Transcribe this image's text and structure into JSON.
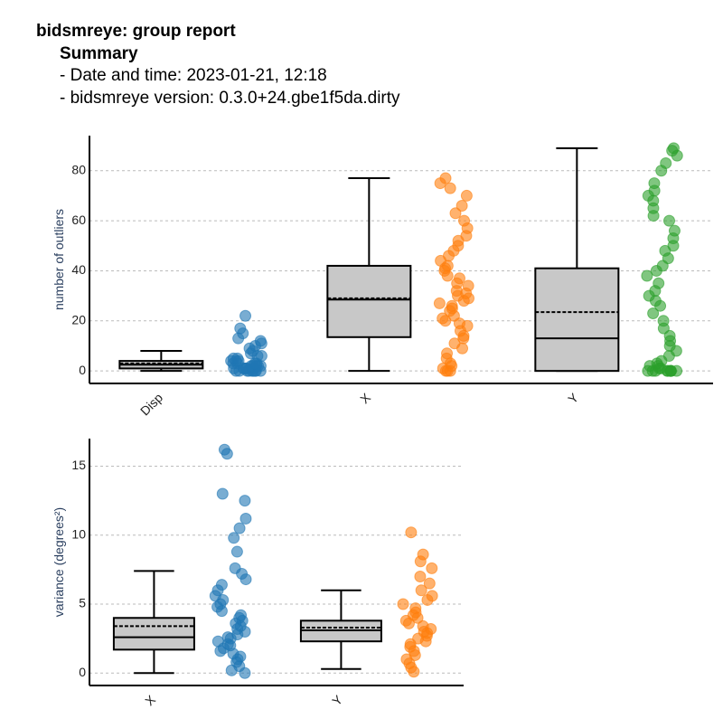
{
  "header": {
    "title": "bidsmreye: group report",
    "subtitle": "Summary",
    "lines": [
      "- Date and time: 2023-01-21, 12:18",
      "- bidsmreye version: 0.3.0+24.gbe1f5da.dirty"
    ]
  },
  "chart_data": [
    {
      "type": "box",
      "ylabel": "number of outliers",
      "categories": [
        "Disp",
        "X",
        "Y"
      ],
      "ylim": [
        -5,
        94
      ],
      "yticks": [
        0,
        20,
        40,
        60,
        80
      ],
      "grid": true,
      "box_color": "#c8c8c8",
      "boxes": [
        {
          "whislo": 0,
          "q1": 1,
          "med": 2.5,
          "q3": 4,
          "whishi": 8,
          "mean": 3
        },
        {
          "whislo": 0,
          "q1": 13.5,
          "med": 28.5,
          "q3": 42,
          "whishi": 77,
          "mean": 29
        },
        {
          "whislo": 0,
          "q1": 0,
          "med": 13,
          "q3": 41,
          "whishi": 89,
          "mean": 23.5
        }
      ],
      "points": [
        {
          "color": "#1f77b4",
          "values": [
            0,
            0,
            0,
            0,
            0,
            0,
            0,
            0,
            0,
            1,
            1,
            1,
            1,
            1,
            1,
            2,
            2,
            2,
            2,
            2,
            3,
            3,
            3,
            3,
            4,
            4,
            4,
            5,
            5,
            6,
            6,
            7,
            8,
            9,
            10,
            11,
            12,
            13,
            15,
            17,
            22
          ]
        },
        {
          "color": "#ff7f0e",
          "values": [
            0,
            0,
            0,
            1,
            2,
            3,
            5,
            7,
            9,
            11,
            13,
            14,
            16,
            18,
            19,
            20,
            21,
            22,
            24,
            25,
            26,
            27,
            28,
            29,
            30,
            31,
            32,
            34,
            35,
            37,
            38,
            40,
            41,
            42,
            44,
            46,
            48,
            50,
            52,
            54,
            57,
            60,
            63,
            66,
            70,
            73,
            75,
            77
          ]
        },
        {
          "color": "#2ca02c",
          "values": [
            0,
            0,
            0,
            0,
            0,
            0,
            0,
            0,
            0,
            0,
            1,
            1,
            2,
            2,
            3,
            4,
            6,
            8,
            10,
            12,
            14,
            17,
            20,
            23,
            26,
            28,
            30,
            32,
            35,
            38,
            40,
            42,
            45,
            48,
            50,
            53,
            56,
            60,
            62,
            65,
            68,
            70,
            72,
            75,
            80,
            83,
            86,
            88,
            89
          ]
        }
      ]
    },
    {
      "type": "box",
      "ylabel": "variance (degrees²)",
      "categories": [
        "X",
        "Y"
      ],
      "ylim": [
        -0.9,
        17
      ],
      "yticks": [
        0,
        5,
        10,
        15
      ],
      "grid": true,
      "box_color": "#c8c8c8",
      "boxes": [
        {
          "whislo": 0,
          "q1": 1.7,
          "med": 2.6,
          "q3": 4.0,
          "whishi": 7.4,
          "mean": 3.4
        },
        {
          "whislo": 0.3,
          "q1": 2.3,
          "med": 3.1,
          "q3": 3.8,
          "whishi": 6.0,
          "mean": 3.3
        }
      ],
      "points": [
        {
          "color": "#1f77b4",
          "values": [
            0,
            0.2,
            0.5,
            0.8,
            1,
            1.2,
            1.4,
            1.6,
            1.8,
            2,
            2.1,
            2.3,
            2.5,
            2.6,
            2.8,
            3,
            3.2,
            3.4,
            3.6,
            3.8,
            4,
            4.2,
            4.5,
            4.8,
            5,
            5.3,
            5.6,
            6,
            6.4,
            6.8,
            7.2,
            7.6,
            8.8,
            9.8,
            10.5,
            11.2,
            12.5,
            13,
            15.9,
            16.2
          ]
        },
        {
          "color": "#ff7f0e",
          "values": [
            0.1,
            0.4,
            0.7,
            1,
            1.3,
            1.6,
            1.9,
            2.1,
            2.3,
            2.5,
            2.7,
            2.9,
            3,
            3.2,
            3.4,
            3.6,
            3.8,
            4,
            4.2,
            4.4,
            4.7,
            5,
            5.3,
            5.6,
            6,
            6.5,
            7,
            7.6,
            8.1,
            8.6,
            10.2
          ]
        }
      ]
    }
  ]
}
